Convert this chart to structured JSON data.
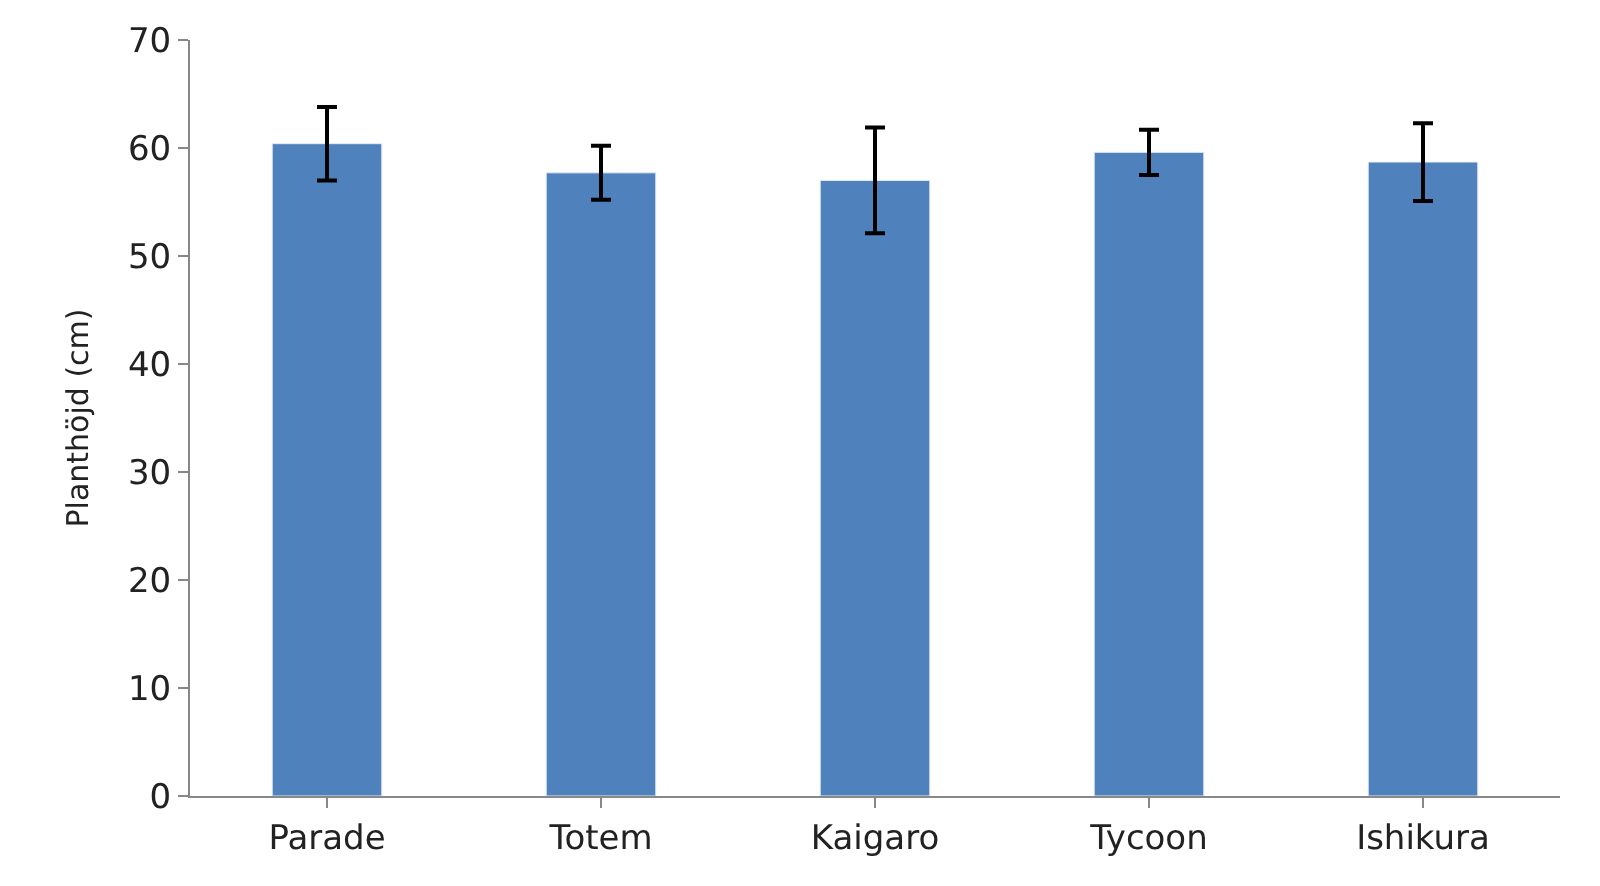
{
  "chart_data": {
    "type": "bar",
    "ylabel": "Planthöjd (cm)",
    "categories": [
      "Parade",
      "Totem",
      "Kaigaro",
      "Tycoon",
      "Ishikura"
    ],
    "values": [
      60.4,
      57.7,
      57.0,
      59.6,
      58.7
    ],
    "errors": [
      3.4,
      2.5,
      4.9,
      2.1,
      3.6
    ],
    "color": "#4f81bd",
    "ylim": [
      0,
      70
    ],
    "yticks": [
      0,
      10,
      20,
      30,
      40,
      50,
      60,
      70
    ]
  }
}
